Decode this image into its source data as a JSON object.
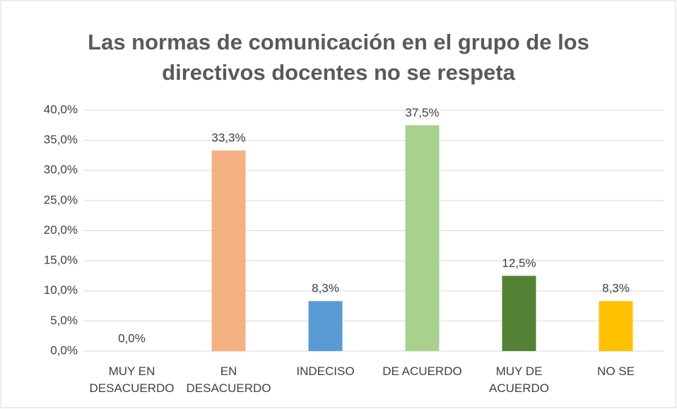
{
  "chart_data": {
    "type": "bar",
    "title": "Las normas de comunicación en el grupo de los directivos docentes no se respeta",
    "categories": [
      "MUY EN DESACUERDO",
      "EN DESACUERDO",
      "INDECISO",
      "DE ACUERDO",
      "MUY DE ACUERDO",
      "NO SE"
    ],
    "values": [
      0,
      33.3,
      8.3,
      37.5,
      12.5,
      8.3
    ],
    "value_labels": [
      "0,0%",
      "33,3%",
      "8,3%",
      "37,5%",
      "12,5%",
      "8,3%"
    ],
    "colors": [
      "#4472c4",
      "#f4b183",
      "#5b9bd5",
      "#a9d18e",
      "#548235",
      "#ffc000"
    ],
    "ylim": [
      0,
      40
    ],
    "yticks": [
      {
        "value": 0,
        "label": "0,0%"
      },
      {
        "value": 5,
        "label": "5,0%"
      },
      {
        "value": 10,
        "label": "10,0%"
      },
      {
        "value": 15,
        "label": "15,0%"
      },
      {
        "value": 20,
        "label": "20,0%"
      },
      {
        "value": 25,
        "label": "25,0%"
      },
      {
        "value": 30,
        "label": "30,0%"
      },
      {
        "value": 35,
        "label": "35,0%"
      },
      {
        "value": 40,
        "label": "40,0%"
      }
    ],
    "grid": true
  }
}
